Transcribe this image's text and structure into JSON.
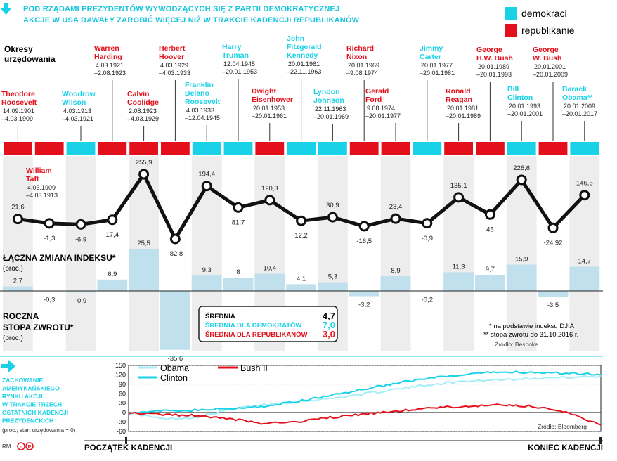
{
  "header": {
    "title_line1": "POD RZĄDAMI PREZYDENTÓW WYWODZĄCYCH SIĘ Z PARTII DEMOKRATYCZNEJ",
    "title_line2": "AKCJE W USA DAWAŁY ZAROBIĆ WIĘCEJ NIŻ W TRAKCIE KADENCJI REPUBLIKANÓW"
  },
  "legend": {
    "dem_label": "demokraci",
    "rep_label": "republikanie",
    "dem_color": "#19d2e8",
    "rep_color": "#e3101b"
  },
  "labels": {
    "terms_line1": "Okresy",
    "terms_line2": "urzędowania",
    "index_title": "ŁĄCZNA ZMIANA INDEKSU*",
    "index_unit": "(proc.)",
    "annual_line1": "ROCZNA",
    "annual_line2": "STOPA ZWROTU*",
    "annual_unit": "(proc.)",
    "note1": "* na podstawie indeksu DJIA",
    "note2": "** stopa zwrotu do 31.10.2016 r.",
    "source_top": "Źródło: Bespoke",
    "behavior_lines": [
      "ZACHOWANIE",
      "AMERYKAŃSKIEGO",
      "RYNKU AKCJI",
      "W TRAKCIE TRZECH",
      "OSTATNICH KADENCJI",
      "PREZYDENCKICH"
    ],
    "behavior_unit": "(proc.; start urzędowania = 0)",
    "start_label": "POCZĄTEK KADENCJI",
    "end_label": "KONIEC KADENCJI",
    "source_bottom": "Źródło: Bloomberg",
    "credit": "RM"
  },
  "averages": {
    "all_label": "ŚREDNIA",
    "all_value": "4,7",
    "dem_label": "ŚREDNIA DLA DEMOKRATÓW",
    "dem_value": "7,0",
    "rep_label": "ŚREDNIA DLA REPUBLIKANÓW",
    "rep_value": "3,0"
  },
  "presidents": [
    {
      "name": [
        "Theodore",
        "Roosevelt"
      ],
      "dates": [
        "14.09.1901",
        "–4.03.1909"
      ],
      "party": "R",
      "total": "21,6",
      "annual": "2,7"
    },
    {
      "name": [
        "William",
        "Taft"
      ],
      "dates": [
        "4.03.1909",
        "–4.03.1913"
      ],
      "party": "R",
      "total": "-1,3",
      "annual": "-0,3"
    },
    {
      "name": [
        "Woodrow",
        "Wilson"
      ],
      "dates": [
        "4.03.1913",
        "–4.03.1921"
      ],
      "party": "D",
      "total": "-6,9",
      "annual": "-0,9"
    },
    {
      "name": [
        "Warren",
        "Harding"
      ],
      "dates": [
        "4.03.1921",
        "–2.08.1923"
      ],
      "party": "R",
      "total": "17,4",
      "annual": "6,9"
    },
    {
      "name": [
        "Calvin",
        "Coolidge"
      ],
      "dates": [
        "2.08.1923",
        "–4.03.1929"
      ],
      "party": "R",
      "total": "255,9",
      "annual": "25,5"
    },
    {
      "name": [
        "Herbert",
        "Hoover"
      ],
      "dates": [
        "4.03.1929",
        "–4.03.1933"
      ],
      "party": "R",
      "total": "-82,8",
      "annual": "-35,6"
    },
    {
      "name": [
        "Franklin",
        "Delano",
        "Roosevelt"
      ],
      "dates": [
        "4.03.1933",
        "–12.04.1945"
      ],
      "party": "D",
      "total": "194,4",
      "annual": "9,3"
    },
    {
      "name": [
        "Harry",
        "Truman"
      ],
      "dates": [
        "12.04.1945",
        "–20.01.1953"
      ],
      "party": "D",
      "total": "81,7",
      "annual": "8"
    },
    {
      "name": [
        "Dwight",
        "Eisenhower"
      ],
      "dates": [
        "20.01.1953",
        "–20.01.1961"
      ],
      "party": "R",
      "total": "120,3",
      "annual": "10,4"
    },
    {
      "name": [
        "John",
        "Fitzgerald",
        "Kennedy"
      ],
      "dates": [
        "20.01.1961",
        "–22.11.1963"
      ],
      "party": "D",
      "total": "12,2",
      "annual": "4,1"
    },
    {
      "name": [
        "Lyndon",
        "Johnson"
      ],
      "dates": [
        "22.11.1963",
        "–20.01.1969"
      ],
      "party": "D",
      "total": "30,9",
      "annual": "5,3"
    },
    {
      "name": [
        "Richard",
        "Nixon"
      ],
      "dates": [
        "20.01.1969",
        "–9.08.1974"
      ],
      "party": "R",
      "total": "-16,5",
      "annual": "-3,2"
    },
    {
      "name": [
        "Gerald",
        "Ford"
      ],
      "dates": [
        "9.08.1974",
        "–20.01.1977"
      ],
      "party": "R",
      "total": "23,4",
      "annual": "8,9"
    },
    {
      "name": [
        "Jimmy",
        "Carter"
      ],
      "dates": [
        "20.01.1977",
        "–20.01.1981"
      ],
      "party": "D",
      "total": "-0,9",
      "annual": "-0,2"
    },
    {
      "name": [
        "Ronald",
        "Reagan"
      ],
      "dates": [
        "20.01.1981",
        "–20.01.1989"
      ],
      "party": "R",
      "total": "135,1",
      "annual": "11,3"
    },
    {
      "name": [
        "George",
        "H.W. Bush"
      ],
      "dates": [
        "20.01.1989",
        "–20.01.1993"
      ],
      "party": "R",
      "total": "45",
      "annual": "9,7"
    },
    {
      "name": [
        "Bill",
        "Clinton"
      ],
      "dates": [
        "20.01.1993",
        "–20.01.2001"
      ],
      "party": "D",
      "total": "226,6",
      "annual": "15,9"
    },
    {
      "name": [
        "George",
        "W. Bush"
      ],
      "dates": [
        "20.01.2001",
        "–20.01.2009"
      ],
      "party": "R",
      "total": "-24,92",
      "annual": "-3,5"
    },
    {
      "name": [
        "Barack",
        "Obama**"
      ],
      "dates": [
        "20.01.2009",
        "–20.01.2017"
      ],
      "party": "D",
      "total": "146,6",
      "annual": "14,7"
    }
  ],
  "chart_data": [
    {
      "type": "line",
      "title": "ŁĄCZNA ZMIANA INDEKSU* (proc.)",
      "categories": [
        "Theodore Roosevelt",
        "William Taft",
        "Woodrow Wilson",
        "Warren Harding",
        "Calvin Coolidge",
        "Herbert Hoover",
        "Franklin Delano Roosevelt",
        "Harry Truman",
        "Dwight Eisenhower",
        "John Fitzgerald Kennedy",
        "Lyndon Johnson",
        "Richard Nixon",
        "Gerald Ford",
        "Jimmy Carter",
        "Ronald Reagan",
        "George H.W. Bush",
        "Bill Clinton",
        "George W. Bush",
        "Barack Obama"
      ],
      "values": [
        21.6,
        -1.3,
        -6.9,
        17.4,
        255.9,
        -82.8,
        194.4,
        81.7,
        120.3,
        12.2,
        30.9,
        -16.5,
        23.4,
        -0.9,
        135.1,
        45,
        226.6,
        -24.92,
        146.6
      ],
      "ylim": [
        -90,
        260
      ]
    },
    {
      "type": "bar",
      "title": "ROCZNA STOPA ZWROTU* (proc.)",
      "categories": [
        "Theodore Roosevelt",
        "William Taft",
        "Woodrow Wilson",
        "Warren Harding",
        "Calvin Coolidge",
        "Herbert Hoover",
        "Franklin Delano Roosevelt",
        "Harry Truman",
        "Dwight Eisenhower",
        "John Fitzgerald Kennedy",
        "Lyndon Johnson",
        "Richard Nixon",
        "Gerald Ford",
        "Jimmy Carter",
        "Ronald Reagan",
        "George H.W. Bush",
        "Bill Clinton",
        "George W. Bush",
        "Barack Obama"
      ],
      "values": [
        2.7,
        -0.3,
        -0.9,
        6.9,
        25.5,
        -35.6,
        9.3,
        8,
        10.4,
        4.1,
        5.3,
        -3.2,
        8.9,
        -0.2,
        11.3,
        9.7,
        15.9,
        -3.5,
        14.7
      ],
      "ylim": [
        -36,
        26
      ]
    },
    {
      "type": "line",
      "title": "ZACHOWANIE AMERYKAŃSKIEGO RYNKU AKCJI W TRAKCIE TRZECH OSTATNICH KADENCJI PREZYDENCKICH",
      "ylabel": "(proc.; start urzędowania = 0)",
      "yticks": [
        "150",
        "120",
        "90",
        "60",
        "30",
        "0",
        "-30",
        "-60"
      ],
      "ylim": [
        -60,
        150
      ],
      "series": [
        {
          "name": "Obama",
          "color": "#a6eef7",
          "values": [
            0,
            -20,
            -15,
            10,
            25,
            35,
            45,
            60,
            75,
            90,
            100,
            105,
            110,
            112,
            115
          ]
        },
        {
          "name": "Clinton",
          "color": "#19d2e8",
          "values": [
            0,
            5,
            8,
            12,
            20,
            35,
            55,
            75,
            95,
            110,
            120,
            130,
            128,
            125,
            122
          ]
        },
        {
          "name": "Bush II",
          "color": "#e3101b",
          "values": [
            0,
            -5,
            -10,
            -20,
            -35,
            -30,
            -15,
            -5,
            5,
            15,
            20,
            25,
            20,
            0,
            -40
          ]
        }
      ]
    }
  ]
}
